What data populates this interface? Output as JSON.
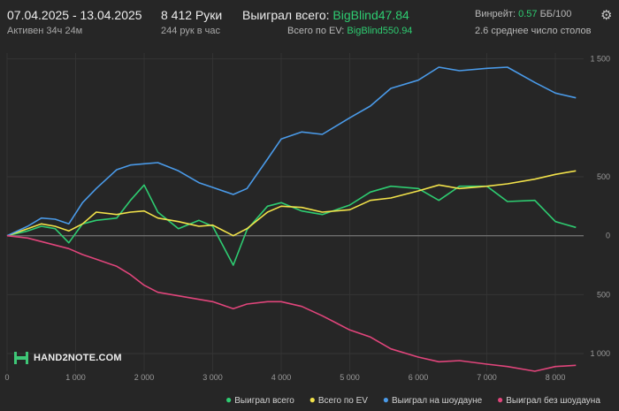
{
  "header": {
    "date_range": "07.04.2025 - 13.04.2025",
    "active_label": "Активен 34ч 24м",
    "hands": "8 412 Руки",
    "hands_per_hour": "244 рук в час",
    "won_label": "Выиграл всего: ",
    "won_value": "BigBlind47.84",
    "ev_label": "Всего по EV: ",
    "ev_value": "BigBlind550.94",
    "winrate_label": "Винрейт: ",
    "winrate_value": "0.57",
    "winrate_unit": " ББ/100",
    "tables_label": "2.6 среднее число столов"
  },
  "logo": {
    "text": "HAND2NOTE.COM"
  },
  "chart_data": {
    "type": "line",
    "xlim": [
      0,
      8412
    ],
    "ylim": [
      -1150,
      1550
    ],
    "x_ticks": [
      0,
      1000,
      2000,
      3000,
      4000,
      5000,
      6000,
      7000,
      8000
    ],
    "x_tick_labels": [
      "0",
      "1 000",
      "2 000",
      "3 000",
      "4 000",
      "5 000",
      "6 000",
      "7 000",
      "8 000"
    ],
    "y_ticks": [
      1500,
      500,
      0,
      -500,
      -1000
    ],
    "y_tick_labels": [
      "1 500",
      "500",
      "0",
      "500",
      "1 000"
    ],
    "x": [
      0,
      300,
      500,
      700,
      900,
      1100,
      1300,
      1600,
      1800,
      2000,
      2200,
      2500,
      2800,
      3000,
      3300,
      3500,
      3800,
      4000,
      4300,
      4600,
      5000,
      5300,
      5600,
      6000,
      6300,
      6600,
      7000,
      7300,
      7700,
      8000,
      8300
    ],
    "series": [
      {
        "name": "Выиграл всего",
        "color": "#2ecc71",
        "values": [
          0,
          40,
          80,
          60,
          -60,
          100,
          130,
          150,
          300,
          430,
          200,
          60,
          130,
          80,
          -250,
          50,
          250,
          280,
          210,
          180,
          260,
          370,
          420,
          400,
          300,
          420,
          420,
          290,
          300,
          120,
          70
        ]
      },
      {
        "name": "Всего по EV",
        "color": "#f2e24a",
        "values": [
          0,
          60,
          100,
          80,
          40,
          100,
          200,
          180,
          200,
          210,
          150,
          120,
          80,
          90,
          0,
          60,
          200,
          250,
          240,
          200,
          220,
          300,
          320,
          380,
          430,
          400,
          420,
          440,
          480,
          520,
          550
        ]
      },
      {
        "name": "Выиграл на шоудауне",
        "color": "#4a9ae8",
        "values": [
          0,
          80,
          150,
          140,
          100,
          280,
          400,
          560,
          600,
          610,
          620,
          550,
          450,
          410,
          350,
          400,
          650,
          820,
          880,
          860,
          1000,
          1100,
          1250,
          1320,
          1430,
          1400,
          1420,
          1430,
          1300,
          1210,
          1170
        ]
      },
      {
        "name": "Выиграл без шоудауна",
        "color": "#e0457b",
        "values": [
          0,
          -20,
          -50,
          -80,
          -110,
          -160,
          -200,
          -260,
          -330,
          -420,
          -480,
          -510,
          -540,
          -560,
          -620,
          -580,
          -560,
          -560,
          -600,
          -680,
          -800,
          -860,
          -960,
          -1030,
          -1070,
          -1060,
          -1090,
          -1110,
          -1150,
          -1110,
          -1100
        ]
      }
    ]
  }
}
